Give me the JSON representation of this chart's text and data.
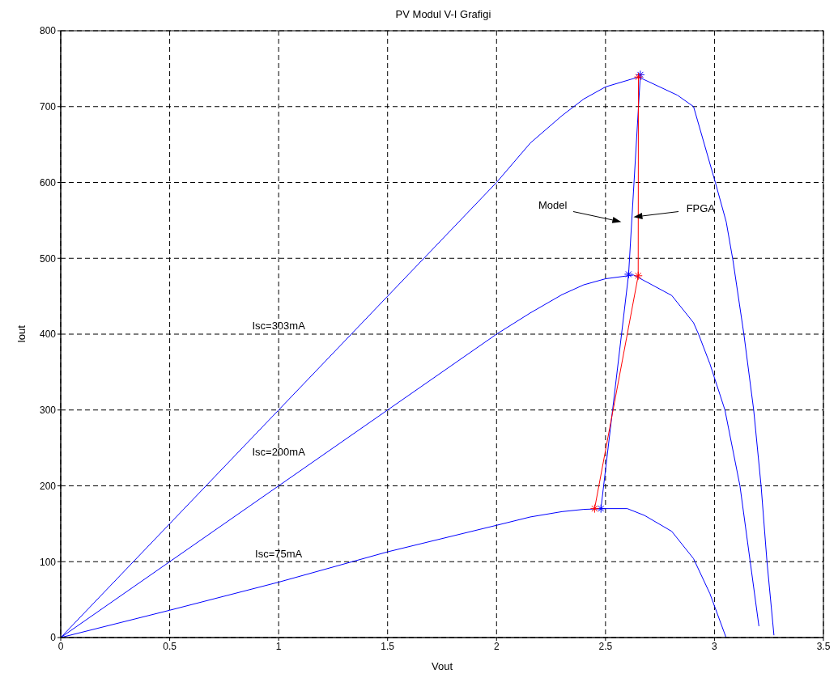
{
  "chart_data": {
    "type": "line",
    "title": "PV Modul V-I Grafigi",
    "xlabel": "Vout",
    "ylabel": "Iout",
    "xlim": [
      0,
      3.5
    ],
    "xticks": [
      0,
      0.5,
      1,
      1.5,
      2,
      2.5,
      3,
      3.5
    ],
    "ylim": [
      0,
      800
    ],
    "yticks": [
      0,
      100,
      200,
      300,
      400,
      500,
      600,
      700,
      800
    ],
    "grid": true,
    "marker": "none",
    "line_style": "solid",
    "series": [
      {
        "color": "#0000ff",
        "x": [
          0,
          0.5,
          1,
          1.5,
          2,
          2.155,
          2.3,
          2.4,
          2.5,
          2.652,
          2.83,
          2.904,
          3.004,
          3.054,
          3.085,
          3.135,
          3.18,
          3.214,
          3.241,
          3.273
        ],
        "values": [
          0,
          150,
          300,
          450,
          600,
          652,
          688,
          710,
          726,
          739,
          715,
          700,
          600,
          548,
          497,
          400,
          300,
          200,
          100,
          3
        ]
      },
      {
        "color": "#0000ff",
        "x": [
          0,
          0.5,
          1,
          1.5,
          2,
          2.155,
          2.3,
          2.4,
          2.5,
          2.629,
          2.804,
          2.904,
          2.927,
          2.979,
          3.048,
          3.117,
          3.164,
          3.204
        ],
        "values": [
          0,
          100,
          200,
          300,
          400,
          428,
          452,
          465,
          473,
          478,
          451,
          415,
          400,
          361,
          300,
          200,
          100,
          15
        ]
      },
      {
        "color": "#0000ff",
        "x": [
          0,
          0.5,
          1,
          1.5,
          2,
          2.155,
          2.3,
          2.4,
          2.5,
          2.6,
          2.679,
          2.804,
          2.904,
          2.979,
          3.052
        ],
        "values": [
          0,
          36,
          73,
          113,
          148,
          159,
          166,
          169,
          170,
          170,
          161,
          140,
          104,
          58,
          1
        ]
      },
      {
        "color": "#0000ff",
        "marker": "cross",
        "x": [
          2.479,
          2.606,
          2.66
        ],
        "values": [
          170,
          479,
          742
        ]
      },
      {
        "color": "#ff0000",
        "marker": "cross",
        "x": [
          2.45,
          2.65,
          2.651
        ],
        "values": [
          170,
          477,
          739
        ]
      }
    ],
    "annotations": [
      "Isc=303mA",
      "Isc=200mA",
      "Isc=75mA",
      "Model",
      "FPGA"
    ]
  }
}
